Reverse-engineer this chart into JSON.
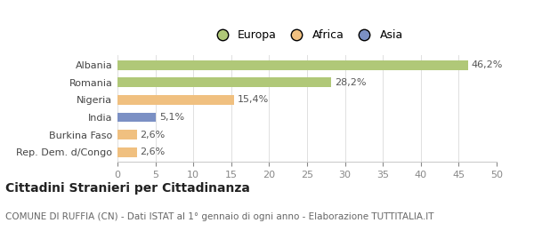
{
  "categories": [
    "Rep. Dem. d/Congo",
    "Burkina Faso",
    "India",
    "Nigeria",
    "Romania",
    "Albania"
  ],
  "values": [
    2.6,
    2.6,
    5.1,
    15.4,
    28.2,
    46.2
  ],
  "labels": [
    "2,6%",
    "2,6%",
    "5,1%",
    "15,4%",
    "28,2%",
    "46,2%"
  ],
  "colors": [
    "#f0c080",
    "#f0c080",
    "#7b90c4",
    "#f0c080",
    "#b0c878",
    "#b0c878"
  ],
  "legend": [
    {
      "label": "Europa",
      "color": "#b0c878"
    },
    {
      "label": "Africa",
      "color": "#f0c080"
    },
    {
      "label": "Asia",
      "color": "#7b90c4"
    }
  ],
  "xlim": [
    0,
    50
  ],
  "xticks": [
    0,
    5,
    10,
    15,
    20,
    25,
    30,
    35,
    40,
    45,
    50
  ],
  "title": "Cittadini Stranieri per Cittadinanza",
  "subtitle": "COMUNE DI RUFFIA (CN) - Dati ISTAT al 1° gennaio di ogni anno - Elaborazione TUTTITALIA.IT",
  "background_color": "#ffffff",
  "bar_height": 0.55,
  "label_fontsize": 8,
  "tick_fontsize": 8,
  "title_fontsize": 10,
  "subtitle_fontsize": 7.5
}
